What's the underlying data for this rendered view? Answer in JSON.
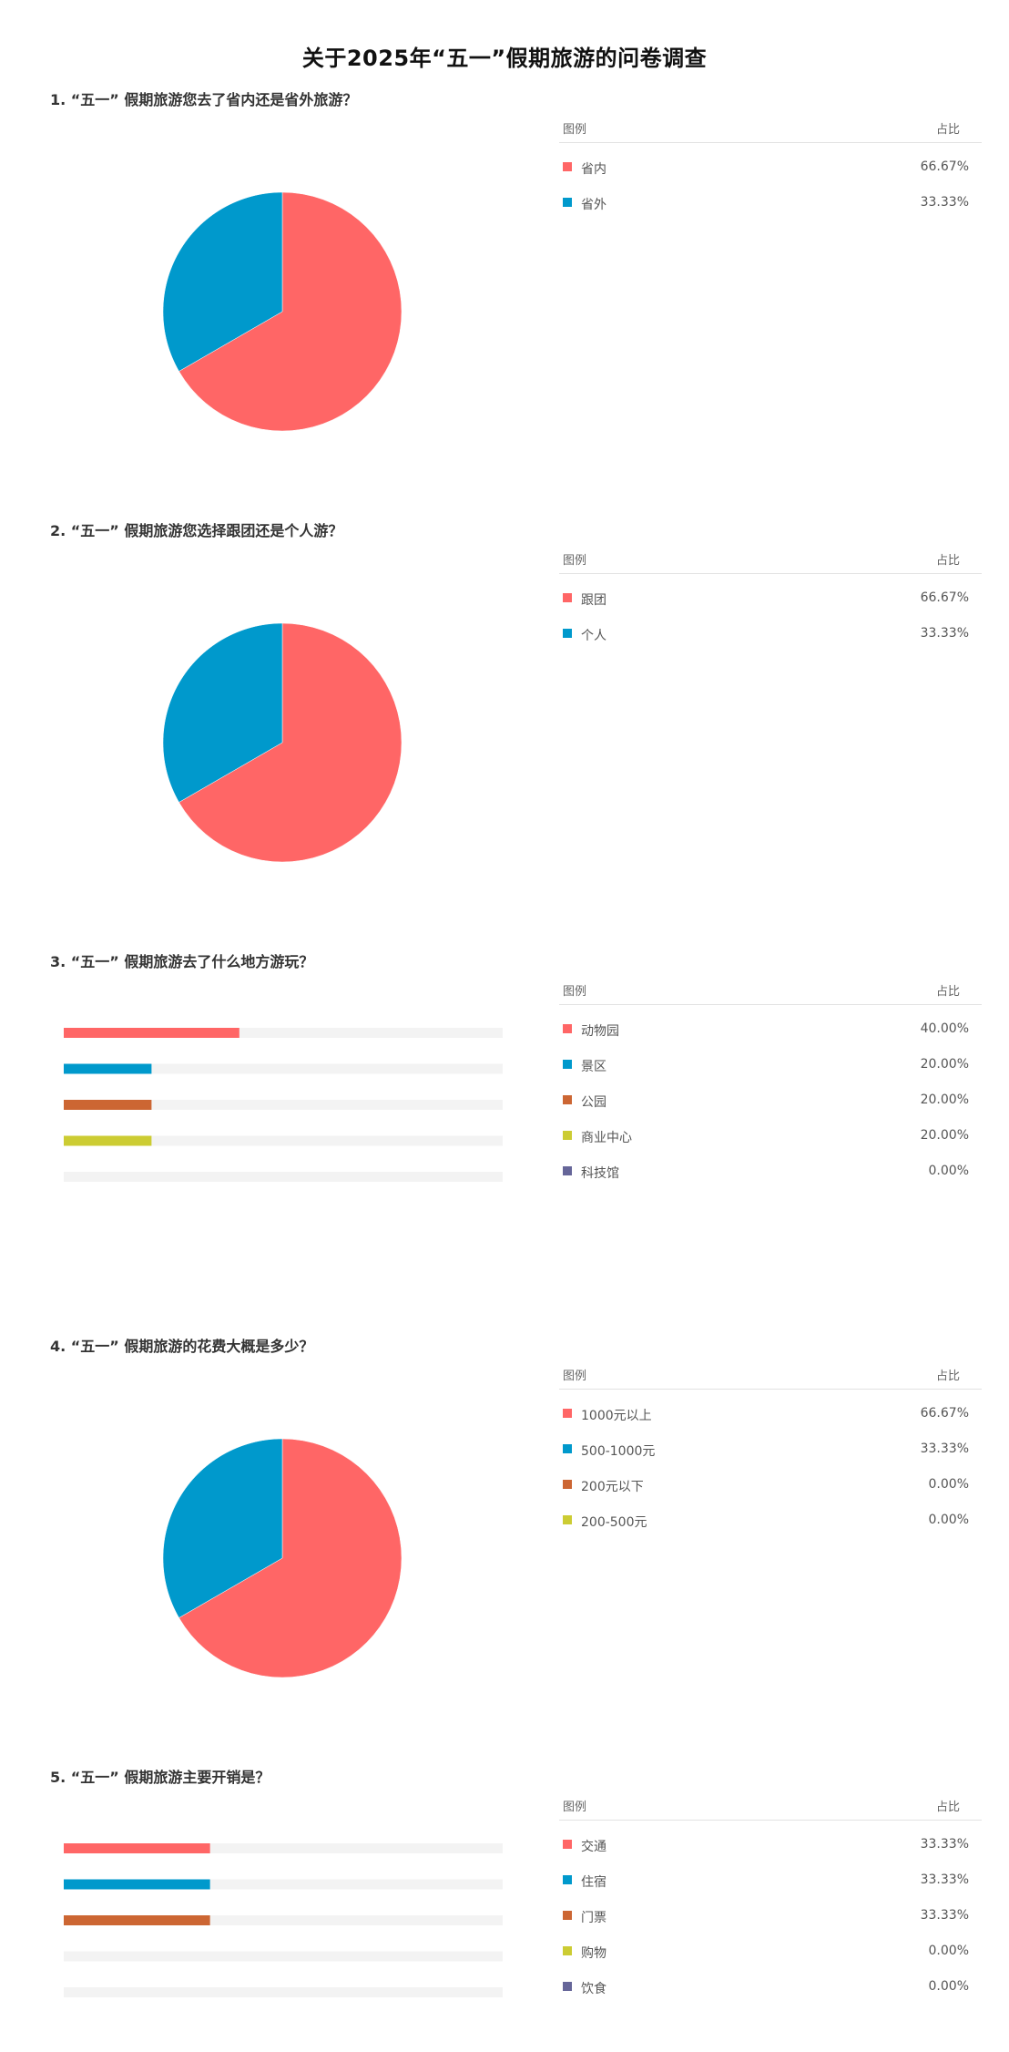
{
  "title": "关于2025年“五一”假期旅游的问卷调查",
  "legend_header": {
    "label": "图例",
    "value": "占比"
  },
  "chart_data": [
    {
      "type": "pie",
      "question": "1.  “五一” 假期旅游您去了省内还是省外旅游？",
      "categories": [
        "省内",
        "省外"
      ],
      "values": [
        66.67,
        33.33
      ],
      "value_labels": [
        "66.67%",
        "33.33%"
      ],
      "colors": [
        "#ff6666",
        "#0099cc"
      ]
    },
    {
      "type": "pie",
      "question": "2.  “五一” 假期旅游您选择跟团还是个人游？",
      "categories": [
        "跟团",
        "个人"
      ],
      "values": [
        66.67,
        33.33
      ],
      "value_labels": [
        "66.67%",
        "33.33%"
      ],
      "colors": [
        "#ff6666",
        "#0099cc"
      ]
    },
    {
      "type": "bar",
      "question": "3.  “五一” 假期旅游去了什么地方游玩？",
      "categories": [
        "动物园",
        "景区",
        "公园",
        "商业中心",
        "科技馆"
      ],
      "values": [
        40.0,
        20.0,
        20.0,
        20.0,
        0.0
      ],
      "value_labels": [
        "40.00%",
        "20.00%",
        "20.00%",
        "20.00%",
        "0.00%"
      ],
      "colors": [
        "#ff6666",
        "#0099cc",
        "#cc6633",
        "#cccc33",
        "#666699"
      ],
      "xlim": [
        0,
        100
      ]
    },
    {
      "type": "pie",
      "question": "4.  “五一” 假期旅游的花费大概是多少？",
      "categories": [
        "1000元以上",
        "500-1000元",
        "200元以下",
        "200-500元"
      ],
      "values": [
        66.67,
        33.33,
        0.0,
        0.0
      ],
      "value_labels": [
        "66.67%",
        "33.33%",
        "0.00%",
        "0.00%"
      ],
      "colors": [
        "#ff6666",
        "#0099cc",
        "#cc6633",
        "#cccc33"
      ]
    },
    {
      "type": "bar",
      "question": "5.  “五一” 假期旅游主要开销是？",
      "categories": [
        "交通",
        "住宿",
        "门票",
        "购物",
        "饮食"
      ],
      "values": [
        33.33,
        33.33,
        33.33,
        0.0,
        0.0
      ],
      "value_labels": [
        "33.33%",
        "33.33%",
        "33.33%",
        "0.00%",
        "0.00%"
      ],
      "colors": [
        "#ff6666",
        "#0099cc",
        "#cc6633",
        "#cccc33",
        "#666699"
      ],
      "xlim": [
        0,
        100
      ]
    }
  ]
}
